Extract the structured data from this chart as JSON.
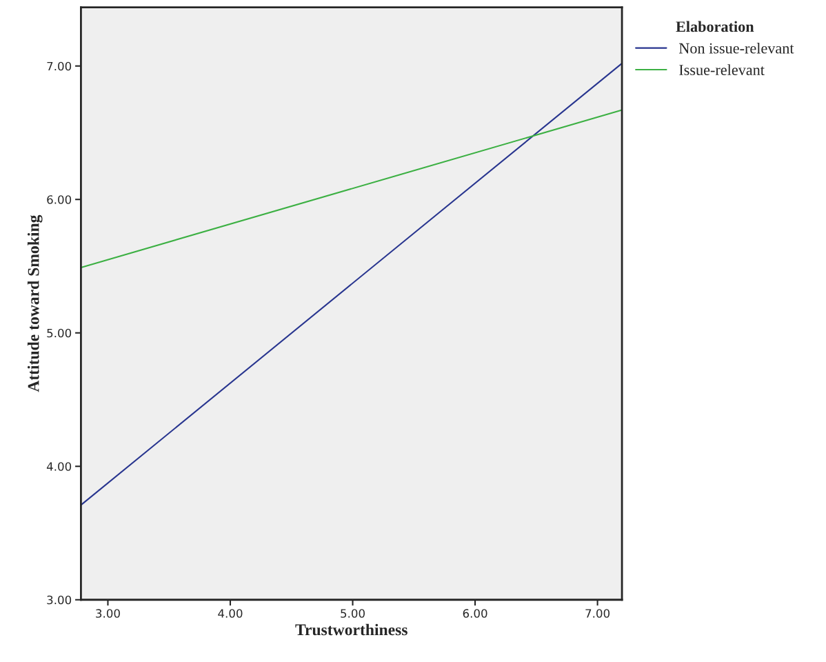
{
  "chart_data": {
    "type": "line",
    "xlabel": "Trustworthiness",
    "ylabel": "Attitude toward Smoking",
    "legend_title": "Elaboration",
    "x": [
      2.78,
      7.2
    ],
    "series": [
      {
        "name": "Non issue-relevant",
        "color": "#28358f",
        "values": [
          3.71,
          7.02
        ]
      },
      {
        "name": "Issue-relevant",
        "color": "#3cb043",
        "values": [
          5.49,
          6.67
        ]
      }
    ],
    "xlim": [
      2.78,
      7.2
    ],
    "xticks": [
      {
        "value": 3,
        "label": "3.00"
      },
      {
        "value": 4,
        "label": "4.00"
      },
      {
        "value": 5,
        "label": "5.00"
      },
      {
        "value": 6,
        "label": "6.00"
      },
      {
        "value": 7,
        "label": "7.00"
      }
    ],
    "ylim": [
      3,
      7.44
    ],
    "yticks": [
      {
        "value": 3,
        "label": "3.00"
      },
      {
        "value": 4,
        "label": "4.00"
      },
      {
        "value": 5,
        "label": "5.00"
      },
      {
        "value": 6,
        "label": "6.00"
      },
      {
        "value": 7,
        "label": "7.00"
      }
    ],
    "grid": false,
    "legend": "top right",
    "marker": "none",
    "line_style": "solid"
  }
}
